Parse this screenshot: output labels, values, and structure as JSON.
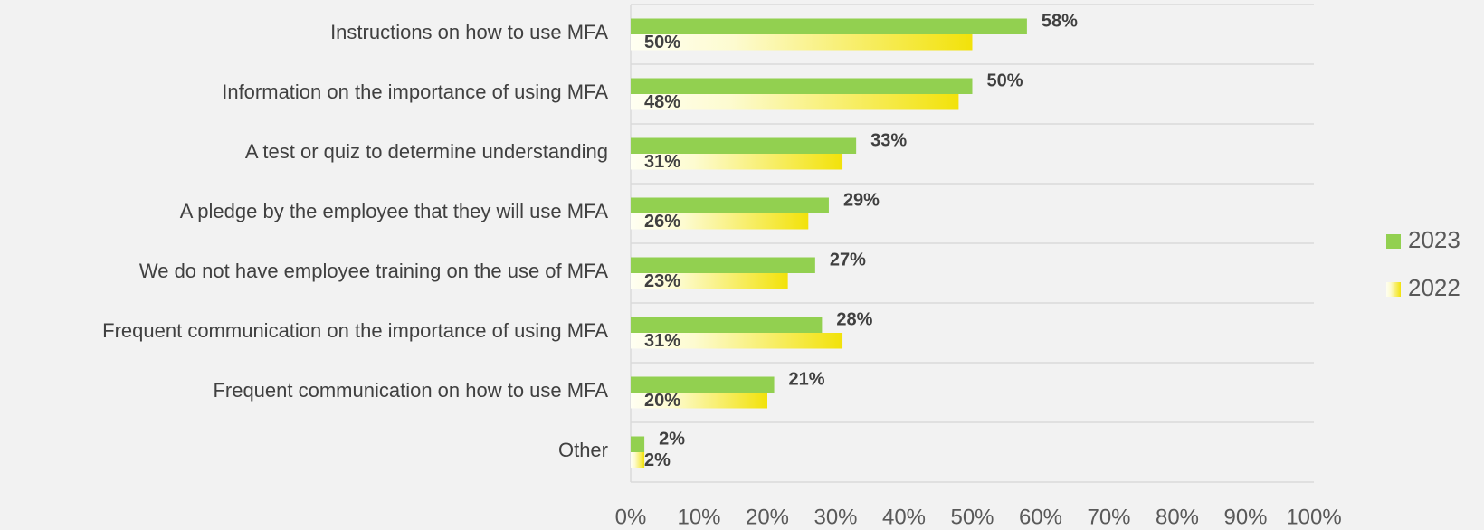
{
  "chart_data": {
    "type": "hbar",
    "categories": [
      "Instructions on how to use MFA",
      "Information on the importance of using MFA",
      "A test or quiz to determine understanding",
      "A pledge by the employee that they will use MFA",
      "We do not have employee training on the use of MFA",
      "Frequent communication on the importance of using MFA",
      "Frequent communication on how to use MFA",
      "Other"
    ],
    "series": [
      {
        "name": "2023",
        "color": "#92d050",
        "values": [
          58,
          50,
          33,
          29,
          27,
          28,
          21,
          2
        ],
        "value_labels": [
          "58%",
          "50%",
          "33%",
          "29%",
          "27%",
          "28%",
          "21%",
          "2%"
        ]
      },
      {
        "name": "2022",
        "color": "#f2e20a",
        "gradient": true,
        "values": [
          50,
          48,
          31,
          26,
          23,
          31,
          20,
          2
        ],
        "value_labels": [
          "50%",
          "48%",
          "31%",
          "26%",
          "23%",
          "31%",
          "20%",
          "2%"
        ]
      }
    ],
    "xlim": [
      0,
      100
    ],
    "xticks": [
      {
        "value": 0,
        "label": "0%"
      },
      {
        "value": 10,
        "label": "10%"
      },
      {
        "value": 20,
        "label": "20%"
      },
      {
        "value": 30,
        "label": "30%"
      },
      {
        "value": 40,
        "label": "40%"
      },
      {
        "value": 50,
        "label": "50%"
      },
      {
        "value": 60,
        "label": "60%"
      },
      {
        "value": 70,
        "label": "70%"
      },
      {
        "value": 80,
        "label": "80%"
      },
      {
        "value": 90,
        "label": "90%"
      },
      {
        "value": 100,
        "label": "100%"
      }
    ],
    "legend": "right"
  }
}
